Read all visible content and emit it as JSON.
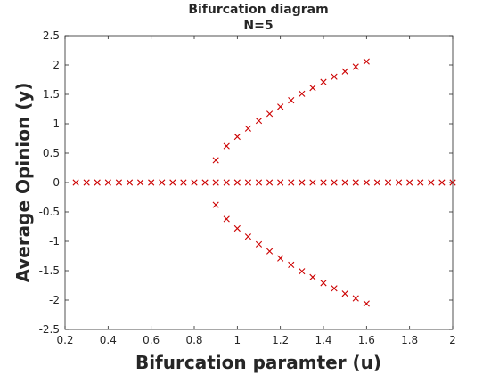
{
  "chart_data": {
    "type": "scatter",
    "title": "Bifurcation diagram",
    "subtitle": "N=5",
    "xlabel": "Bifurcation paramter (u)",
    "ylabel": "Average Opinion (y)",
    "xlim": [
      0.2,
      2
    ],
    "ylim": [
      -2.5,
      2.5
    ],
    "xticks": [
      "0.2",
      "0.4",
      "0.6",
      "0.8",
      "1",
      "1.2",
      "1.4",
      "1.6",
      "1.8",
      "2"
    ],
    "yticks": [
      "-2.5",
      "-2",
      "-1.5",
      "-1",
      "-0.5",
      "0",
      "0.5",
      "1",
      "1.5",
      "2",
      "2.5"
    ],
    "grid": false,
    "marker": "x",
    "color": "#cc0000",
    "series": [
      {
        "x": [
          0.25,
          0.3,
          0.35,
          0.4,
          0.45,
          0.5,
          0.55,
          0.6,
          0.65,
          0.7,
          0.75,
          0.8,
          0.85,
          0.9,
          0.95,
          1.0,
          1.05,
          1.1,
          1.15,
          1.2,
          1.25,
          1.3,
          1.35,
          1.4,
          1.45,
          1.5,
          1.55,
          1.6,
          1.65,
          1.7,
          1.75,
          1.8,
          1.85,
          1.9,
          1.95,
          2.0
        ],
        "y": [
          0,
          0,
          0,
          0,
          0,
          0,
          0,
          0,
          0,
          0,
          0,
          0,
          0,
          0,
          0,
          0,
          0,
          0,
          0,
          0,
          0,
          0,
          0,
          0,
          0,
          0,
          0,
          0,
          0,
          0,
          0,
          0,
          0,
          0,
          0,
          0
        ]
      },
      {
        "x": [
          0.9,
          0.95,
          1.0,
          1.05,
          1.1,
          1.15,
          1.2,
          1.25,
          1.3,
          1.35,
          1.4,
          1.45,
          1.5,
          1.55,
          1.6
        ],
        "y": [
          0.38,
          0.62,
          0.78,
          0.92,
          1.05,
          1.17,
          1.29,
          1.4,
          1.51,
          1.61,
          1.71,
          1.8,
          1.89,
          1.97,
          2.06
        ]
      },
      {
        "x": [
          0.9,
          0.95,
          1.0,
          1.05,
          1.1,
          1.15,
          1.2,
          1.25,
          1.3,
          1.35,
          1.4,
          1.45,
          1.5,
          1.55,
          1.6
        ],
        "y": [
          -0.38,
          -0.62,
          -0.78,
          -0.92,
          -1.05,
          -1.17,
          -1.29,
          -1.4,
          -1.51,
          -1.61,
          -1.71,
          -1.8,
          -1.89,
          -1.97,
          -2.06
        ]
      }
    ]
  }
}
